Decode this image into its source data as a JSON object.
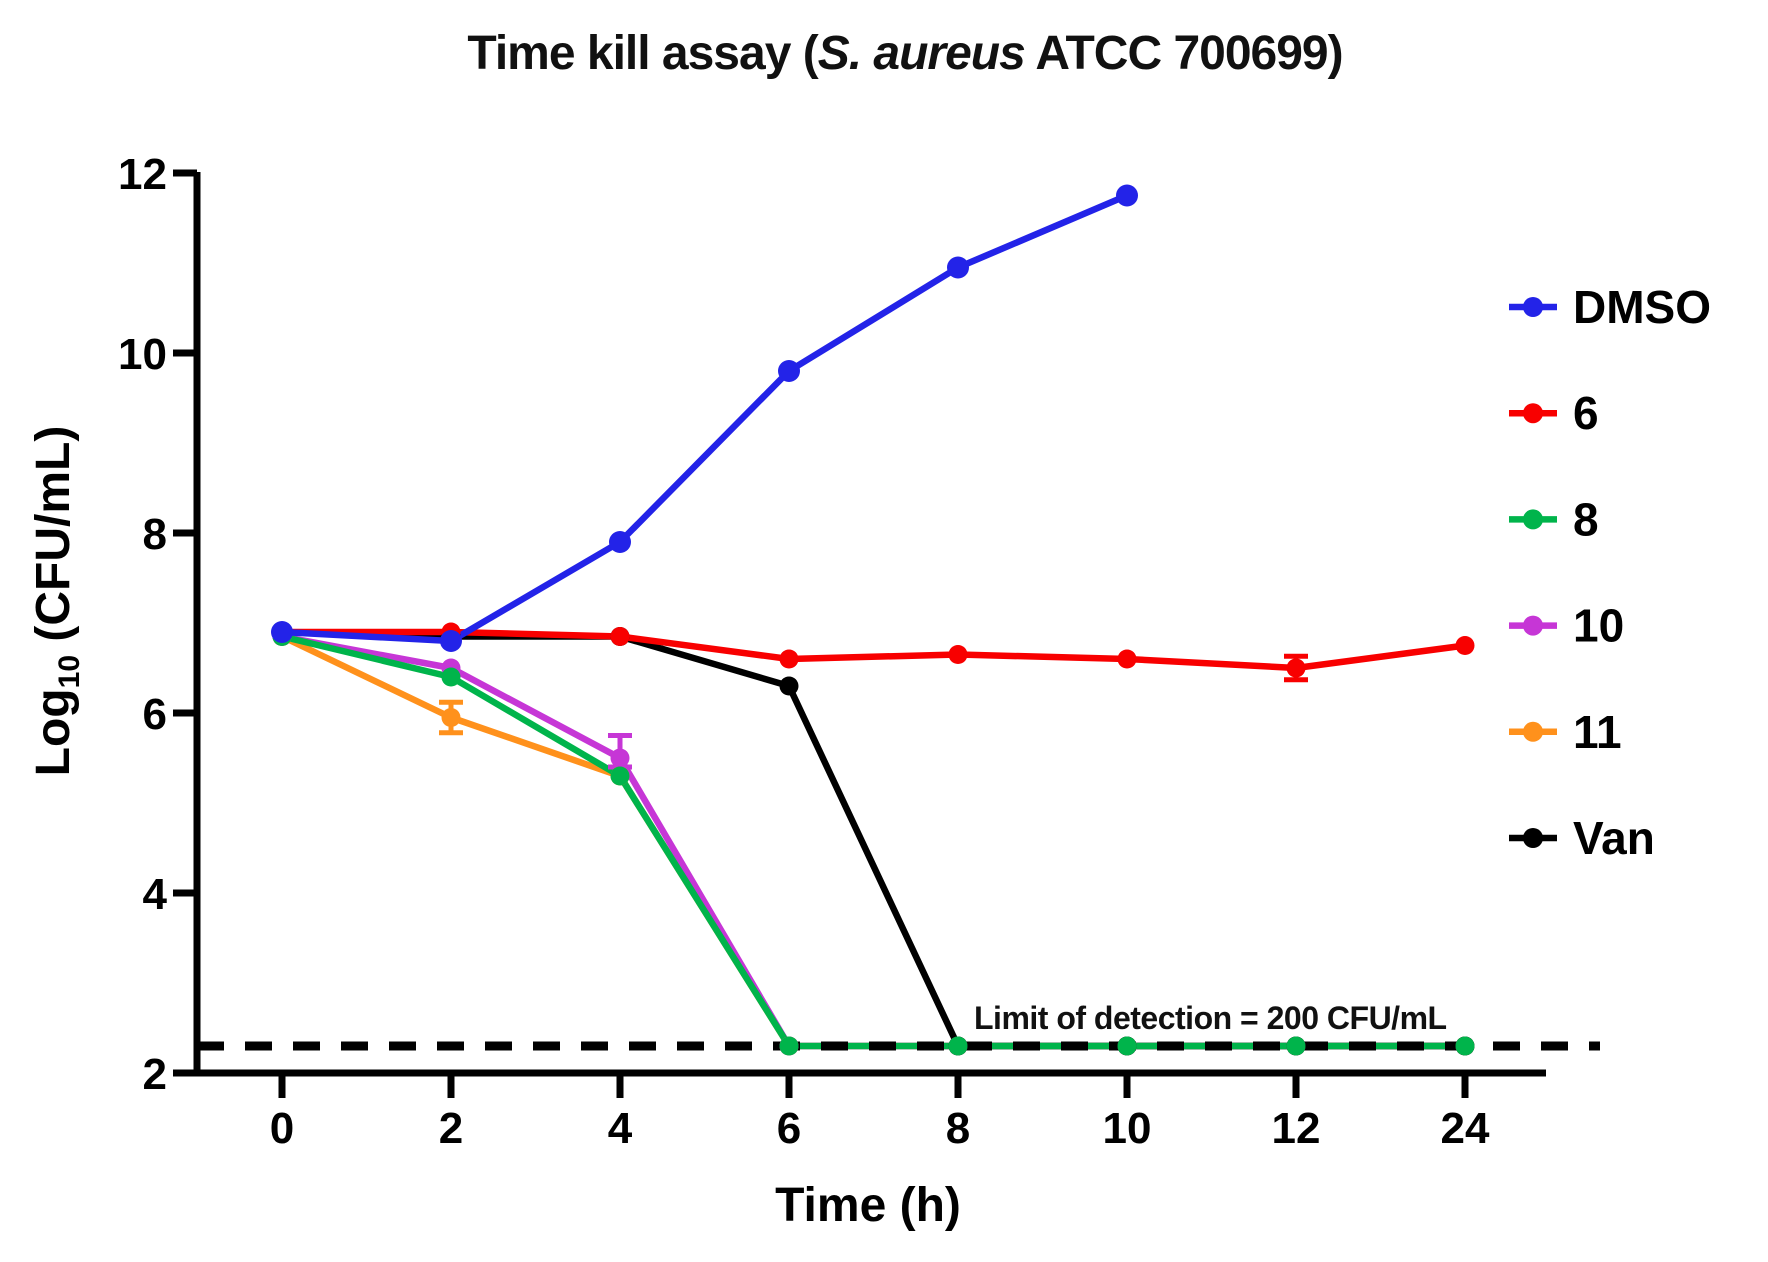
{
  "title": {
    "prefix": "Time kill assay (",
    "species": "S. aureus",
    "suffix": " ATCC 700699)"
  },
  "chart_data": {
    "type": "line",
    "xlabel": "Time (h)",
    "ylabel": {
      "base": "Log",
      "sub": "10",
      "rest": " (CFU/mL)"
    },
    "x_categories": [
      "0",
      "2",
      "4",
      "6",
      "8",
      "10",
      "12",
      "24"
    ],
    "ylim": [
      2,
      12
    ],
    "yticks": [
      {
        "value": 2,
        "label": "2"
      },
      {
        "value": 4,
        "label": "4"
      },
      {
        "value": 6,
        "label": "6"
      },
      {
        "value": 8,
        "label": "8"
      },
      {
        "value": 10,
        "label": "10"
      },
      {
        "value": 12,
        "label": "12"
      }
    ],
    "grid": false,
    "legend_position": "right",
    "annotation": "Limit of detection = 200 CFU/mL",
    "limit_of_detection_log10": 2.3,
    "legend_order": [
      "DMSO",
      "6",
      "8",
      "10",
      "11",
      "Van"
    ],
    "series": [
      {
        "name": "11",
        "color": "#ff911c",
        "layer": 1,
        "values": [
          6.85,
          5.95,
          5.3,
          2.3,
          2.3,
          2.3,
          2.3,
          2.3
        ]
      },
      {
        "name": "10",
        "color": "#c636d6",
        "layer": 1,
        "values": [
          6.85,
          6.5,
          5.5,
          2.3,
          2.3,
          2.3,
          2.3,
          2.3
        ]
      },
      {
        "name": "Van",
        "color": "#000000",
        "layer": 1,
        "values": [
          6.9,
          6.85,
          6.85,
          6.3,
          2.3,
          2.3,
          2.3,
          2.3
        ]
      },
      {
        "name": "8",
        "color": "#00b44b",
        "layer": 1,
        "values": [
          6.85,
          6.4,
          5.3,
          2.3,
          2.3,
          2.3,
          2.3,
          2.3
        ]
      },
      {
        "name": "6",
        "color": "#f80000",
        "layer": 2,
        "values": [
          6.9,
          6.9,
          6.85,
          6.6,
          6.65,
          6.6,
          6.5,
          6.75
        ]
      },
      {
        "name": "DMSO",
        "color": "#2323e8",
        "layer": 2,
        "values": [
          6.9,
          6.8,
          7.9,
          9.8,
          10.95,
          11.75,
          null,
          null
        ]
      }
    ],
    "error_bars": [
      {
        "series": "11",
        "x_index": 1,
        "value": 5.95,
        "plus": 0.17,
        "minus": 0.17
      },
      {
        "series": "10",
        "x_index": 2,
        "value": 5.5,
        "plus": 0.25,
        "minus": 0.1
      },
      {
        "series": "6",
        "x_index": 6,
        "value": 6.5,
        "plus": 0.13,
        "minus": 0.13
      }
    ]
  }
}
